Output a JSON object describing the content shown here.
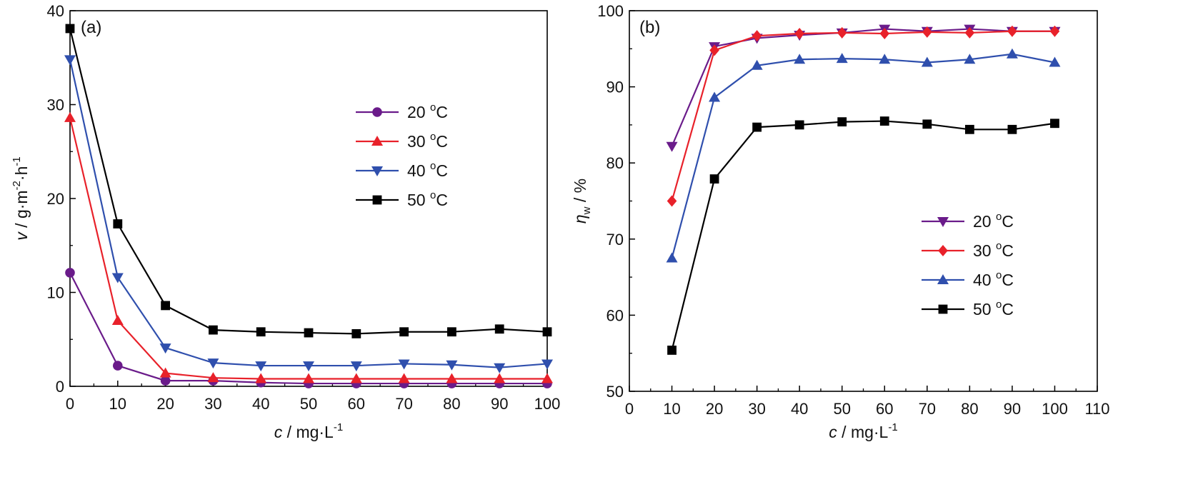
{
  "chart_data": [
    {
      "type": "line",
      "panel_label": "(a)",
      "xlabel": {
        "var": "c",
        "unit": " / mg·L",
        "sup": "-1"
      },
      "ylabel": {
        "var": "v",
        "unit": " / g·m",
        "sup1": "-2",
        "mid": "·h",
        "sup2": "-1"
      },
      "xlim": [
        0,
        100
      ],
      "ylim": [
        0,
        40
      ],
      "xticks": [
        0,
        10,
        20,
        30,
        40,
        50,
        60,
        70,
        80,
        90,
        100
      ],
      "yticks": [
        0,
        10,
        20,
        30,
        40
      ],
      "x": [
        0,
        10,
        20,
        30,
        40,
        50,
        60,
        70,
        80,
        90,
        100
      ],
      "legend_position": "upper-right",
      "series": [
        {
          "name": "20 ",
          "deg": "o",
          "unit": "C",
          "marker": "circle",
          "color": "#6a1b8a",
          "values": [
            12.1,
            2.2,
            0.6,
            0.6,
            0.4,
            0.3,
            0.3,
            0.3,
            0.3,
            0.3,
            0.3
          ]
        },
        {
          "name": "30 ",
          "deg": "o",
          "unit": "C",
          "marker": "triangle-up",
          "color": "#e8212a",
          "values": [
            28.6,
            7.0,
            1.4,
            0.9,
            0.8,
            0.8,
            0.8,
            0.8,
            0.8,
            0.8,
            0.8
          ]
        },
        {
          "name": "40 ",
          "deg": "o",
          "unit": "C",
          "marker": "triangle-down",
          "color": "#2f4fad",
          "values": [
            34.8,
            11.6,
            4.1,
            2.5,
            2.2,
            2.2,
            2.2,
            2.4,
            2.3,
            2.0,
            2.4
          ]
        },
        {
          "name": "50 ",
          "deg": "o",
          "unit": "C",
          "marker": "square",
          "color": "#000000",
          "values": [
            38.1,
            17.3,
            8.6,
            6.0,
            5.8,
            5.7,
            5.6,
            5.8,
            5.8,
            6.1,
            5.8
          ]
        }
      ]
    },
    {
      "type": "line",
      "panel_label": "(b)",
      "xlabel": {
        "var": "c",
        "unit": " / mg·L",
        "sup": "-1"
      },
      "ylabel": {
        "var": "η",
        "sub": "w",
        "unit": " / %"
      },
      "xlim": [
        0,
        110
      ],
      "ylim": [
        50,
        100
      ],
      "xticks": [
        0,
        10,
        20,
        30,
        40,
        50,
        60,
        70,
        80,
        90,
        100,
        110
      ],
      "yticks": [
        50,
        60,
        70,
        80,
        90,
        100
      ],
      "x": [
        10,
        20,
        30,
        40,
        50,
        60,
        70,
        80,
        90,
        100
      ],
      "legend_position": "lower-right",
      "series": [
        {
          "name": "20 ",
          "deg": "o",
          "unit": "C",
          "marker": "triangle-down",
          "color": "#6a1b8a",
          "values": [
            82.2,
            95.3,
            96.4,
            96.8,
            97.1,
            97.6,
            97.3,
            97.6,
            97.3,
            97.3
          ]
        },
        {
          "name": "30 ",
          "deg": "o",
          "unit": "C",
          "marker": "diamond",
          "color": "#e8212a",
          "values": [
            75.0,
            94.8,
            96.7,
            97.0,
            97.1,
            97.0,
            97.2,
            97.1,
            97.3,
            97.3
          ]
        },
        {
          "name": "40 ",
          "deg": "o",
          "unit": "C",
          "marker": "triangle-up",
          "color": "#2f4fad",
          "values": [
            67.5,
            88.6,
            92.8,
            93.6,
            93.7,
            93.6,
            93.2,
            93.6,
            94.3,
            93.2
          ]
        },
        {
          "name": "50 ",
          "deg": "o",
          "unit": "C",
          "marker": "square",
          "color": "#000000",
          "values": [
            55.4,
            77.9,
            84.7,
            85.0,
            85.4,
            85.5,
            85.1,
            84.4,
            84.4,
            85.2
          ]
        }
      ]
    }
  ]
}
